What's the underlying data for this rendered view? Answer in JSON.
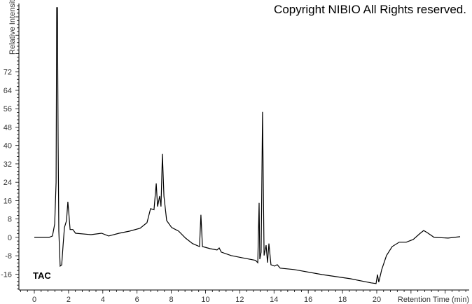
{
  "copyright": "Copyright NIBIO All Rights reserved.",
  "chart_data": {
    "type": "line",
    "title": "",
    "trace_label": "TAC",
    "xlabel": "Retention Time (min)",
    "ylabel": "Relative Intensity",
    "xlim": [
      -0.9,
      25.4
    ],
    "ylim": [
      -22.9,
      101.8
    ],
    "xticks": [
      0,
      2,
      4,
      6,
      8,
      10,
      12,
      14,
      16,
      18,
      20
    ],
    "yticks": [
      -16,
      -8,
      0,
      8,
      16,
      24,
      32,
      40,
      48,
      56,
      64,
      72
    ],
    "grid": false,
    "line_color": "#000000",
    "x": [
      0,
      0.86,
      1.06,
      1.19,
      1.27,
      1.31,
      1.35,
      1.39,
      1.43,
      1.51,
      1.6,
      1.68,
      1.76,
      1.88,
      1.96,
      2.0,
      2.09,
      2.25,
      2.41,
      3.31,
      3.93,
      4.34,
      4.95,
      5.56,
      6.18,
      6.58,
      6.79,
      6.99,
      7.12,
      7.2,
      7.32,
      7.4,
      7.48,
      7.57,
      7.73,
      8.02,
      8.43,
      8.83,
      9.24,
      9.65,
      9.73,
      9.82,
      10.27,
      10.67,
      10.8,
      10.92,
      11.49,
      12.1,
      12.92,
      13.05,
      13.13,
      13.17,
      13.25,
      13.33,
      13.42,
      13.54,
      13.62,
      13.7,
      13.82,
      14.03,
      14.19,
      14.36,
      15.17,
      16.81,
      18.45,
      19.67,
      19.96,
      20.04,
      20.12,
      20.29,
      20.57,
      20.9,
      21.31,
      21.72,
      22.13,
      22.54,
      22.74,
      22.94,
      23.35,
      24.17,
      24.87
    ],
    "y": [
      0,
      0,
      0.6,
      5.8,
      24,
      100,
      100,
      42,
      2.7,
      -12.5,
      -12,
      -3.4,
      4.3,
      7.3,
      15.5,
      12,
      3.4,
      3.4,
      1.8,
      1.2,
      1.8,
      0.6,
      1.8,
      2.7,
      4,
      6.4,
      12.5,
      12,
      23.5,
      13.4,
      18,
      13.4,
      36.3,
      18,
      7.3,
      4.3,
      2.7,
      -0.3,
      -2.7,
      -4,
      9.8,
      -4,
      -4.9,
      -5.5,
      -4.6,
      -6.4,
      -7.9,
      -8.8,
      -10,
      -11,
      15,
      -9.5,
      -6.4,
      54.6,
      -7.9,
      -3.4,
      -11,
      -2.7,
      -11.9,
      -12.5,
      -11.9,
      -13.4,
      -14,
      -16.2,
      -18,
      -19.8,
      -20.1,
      -16.2,
      -19.5,
      -14,
      -7.9,
      -4,
      -2.1,
      -2.1,
      -0.9,
      1.8,
      3,
      2.1,
      0,
      -0.3,
      0.3
    ]
  }
}
